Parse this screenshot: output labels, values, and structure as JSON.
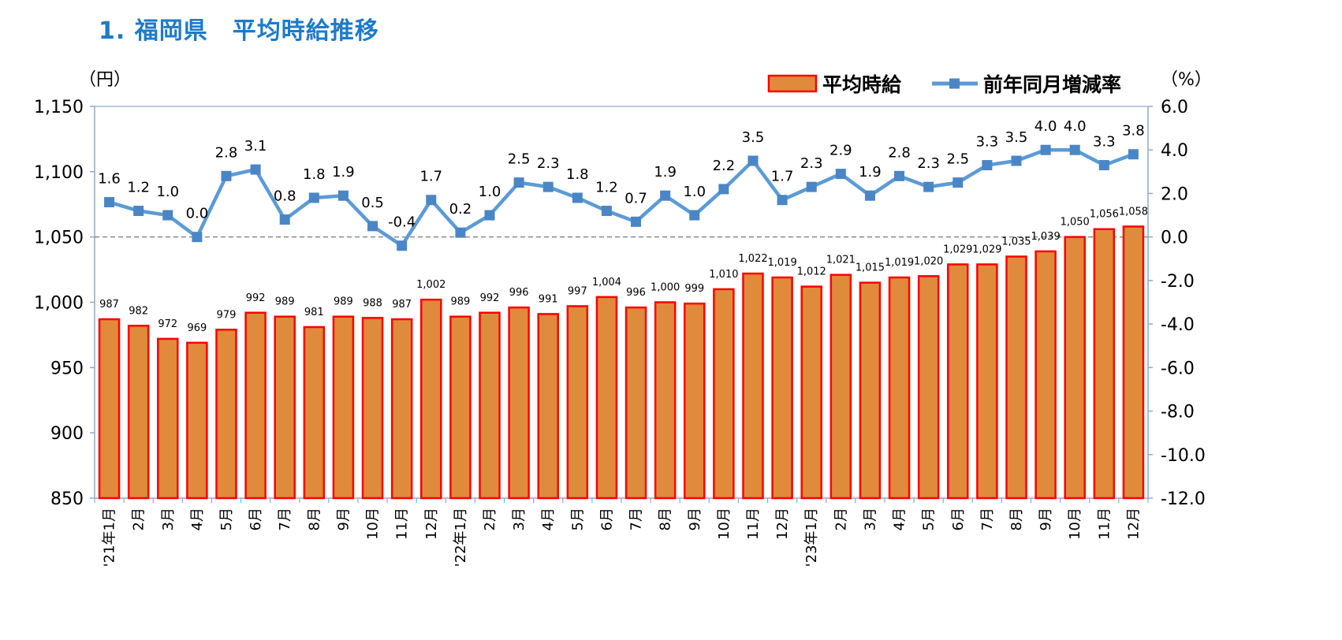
{
  "title": "1. 福岡県　平均時給推移",
  "chart_data": {
    "type": "bar+line",
    "categories": [
      "'21年1月",
      "2月",
      "3月",
      "4月",
      "5月",
      "6月",
      "7月",
      "8月",
      "9月",
      "10月",
      "11月",
      "12月",
      "'22年1月",
      "2月",
      "3月",
      "4月",
      "5月",
      "6月",
      "7月",
      "8月",
      "9月",
      "10月",
      "11月",
      "12月",
      "'23年1月",
      "2月",
      "3月",
      "4月",
      "5月",
      "6月",
      "7月",
      "8月",
      "9月",
      "10月",
      "11月",
      "12月"
    ],
    "series": [
      {
        "name": "平均時給",
        "type": "bar",
        "axis": "left",
        "color": "#e08a3c",
        "edge_color": "#ff0000",
        "values": [
          987,
          982,
          972,
          969,
          979,
          992,
          989,
          981,
          989,
          988,
          987,
          1002,
          989,
          992,
          996,
          991,
          997,
          1004,
          996,
          1000,
          999,
          1010,
          1022,
          1019,
          1012,
          1021,
          1015,
          1019,
          1020,
          1029,
          1029,
          1035,
          1039,
          1050,
          1056,
          1058
        ],
        "labels": [
          "987",
          "982",
          "972",
          "969",
          "979",
          "992",
          "989",
          "981",
          "989",
          "988",
          "987",
          "1,002",
          "989",
          "992",
          "996",
          "991",
          "997",
          "1,004",
          "996",
          "1,000",
          "999",
          "1,010",
          "1,022",
          "1,019",
          "1,012",
          "1,021",
          "1,015",
          "1,019",
          "1,020",
          "1,029",
          "1,029",
          "1,035",
          "1,039",
          "1,050",
          "1,056",
          "1,058"
        ]
      },
      {
        "name": "前年同月増減率",
        "type": "line",
        "axis": "right",
        "color": "#5b9bd5",
        "marker_color": "#4a86c5",
        "values": [
          1.6,
          1.2,
          1.0,
          0.0,
          2.8,
          3.1,
          0.8,
          1.8,
          1.9,
          0.5,
          -0.4,
          1.7,
          0.2,
          1.0,
          2.5,
          2.3,
          1.8,
          1.2,
          0.7,
          1.9,
          1.0,
          2.2,
          3.5,
          1.7,
          2.3,
          2.9,
          1.9,
          2.8,
          2.3,
          2.5,
          3.3,
          3.5,
          4.0,
          4.0,
          3.3,
          3.8
        ],
        "labels": [
          "1.6",
          "1.2",
          "1.0",
          "0.0",
          "2.8",
          "3.1",
          "0.8",
          "1.8",
          "1.9",
          "0.5",
          "-0.4",
          "1.7",
          "0.2",
          "1.0",
          "2.5",
          "2.3",
          "1.8",
          "1.2",
          "0.7",
          "1.9",
          "1.0",
          "2.2",
          "3.5",
          "1.7",
          "2.3",
          "2.9",
          "1.9",
          "2.8",
          "2.3",
          "2.5",
          "3.3",
          "3.5",
          "4.0",
          "4.0",
          "3.3",
          "3.8"
        ]
      }
    ],
    "y_left": {
      "unit_label": "（円）",
      "min": 850,
      "max": 1150,
      "ticks": [
        850,
        900,
        950,
        1000,
        1050,
        1100,
        1150
      ],
      "tick_labels": [
        "850",
        "900",
        "950",
        "1,000",
        "1,050",
        "1,100",
        "1,150"
      ]
    },
    "y_right": {
      "unit_label": "（%）",
      "min": -12,
      "max": 6,
      "ticks": [
        -12,
        -10,
        -8,
        -6,
        -4,
        -2,
        0,
        2,
        4,
        6
      ],
      "tick_labels": [
        "-12.0",
        "-10.0",
        "-8.0",
        "-6.0",
        "-4.0",
        "-2.0",
        "0.0",
        "2.0",
        "4.0",
        "6.0"
      ]
    },
    "reference_line": {
      "axis": "right",
      "value": 0,
      "style": "dashed",
      "color": "#8a8a8a"
    },
    "legend_position": "top-right",
    "grid": false,
    "axis_color": "#8faac8"
  }
}
